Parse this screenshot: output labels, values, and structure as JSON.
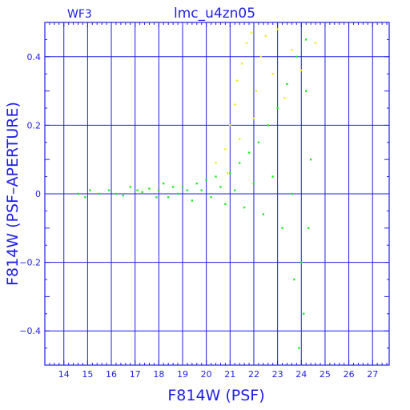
{
  "header": {
    "chip": "WF3",
    "title": "lmc_u4zn05"
  },
  "colors": {
    "axes": "#1e1ee6",
    "grid": "#1e1ee6",
    "main_points": "#22ee22",
    "secondary_points": "#eeee22",
    "background": "#ffffff"
  },
  "chart_data": {
    "type": "scatter",
    "title": "lmc_u4zn05",
    "xlabel": "F814W (PSF)",
    "ylabel": "F814W (PSF–APERTURE)",
    "xlim": [
      13.2,
      27.7
    ],
    "ylim": [
      -0.5,
      0.5
    ],
    "x_ticks": [
      "14",
      "15",
      "16",
      "17",
      "18",
      "19",
      "20",
      "21",
      "22",
      "23",
      "24",
      "25",
      "26",
      "27"
    ],
    "y_ticks": [
      "0.4",
      "0.2",
      "0",
      "−0.2",
      "−0.4"
    ],
    "y_tick_values": [
      0.4,
      0.2,
      0,
      -0.2,
      -0.4
    ],
    "grid": true,
    "legend": "none",
    "series": [
      {
        "color": "green",
        "points": [
          [
            14.6,
            0.0
          ],
          [
            14.9,
            -0.01
          ],
          [
            15.1,
            0.01
          ],
          [
            15.5,
            0.0
          ],
          [
            15.9,
            0.01
          ],
          [
            16.2,
            0.0
          ],
          [
            16.5,
            -0.005
          ],
          [
            16.8,
            0.02
          ],
          [
            17.1,
            0.01
          ],
          [
            17.3,
            0.005
          ],
          [
            17.6,
            0.015
          ],
          [
            17.9,
            -0.01
          ],
          [
            18.0,
            0.01
          ],
          [
            18.2,
            0.03
          ],
          [
            18.4,
            -0.01
          ],
          [
            18.6,
            0.02
          ],
          [
            18.8,
            0.0
          ],
          [
            19.0,
            0.02
          ],
          [
            19.2,
            0.01
          ],
          [
            19.4,
            -0.02
          ],
          [
            19.6,
            0.03
          ],
          [
            19.8,
            0.01
          ],
          [
            20.0,
            0.04
          ],
          [
            20.2,
            -0.01
          ],
          [
            20.4,
            0.05
          ],
          [
            20.6,
            0.02
          ],
          [
            20.8,
            -0.03
          ],
          [
            21.0,
            0.06
          ],
          [
            21.2,
            0.01
          ],
          [
            21.4,
            0.09
          ],
          [
            21.6,
            -0.04
          ],
          [
            21.8,
            0.12
          ],
          [
            22.0,
            0.03
          ],
          [
            22.2,
            0.15
          ],
          [
            22.4,
            -0.06
          ],
          [
            22.6,
            0.2
          ],
          [
            22.8,
            0.05
          ],
          [
            23.0,
            0.25
          ],
          [
            23.2,
            -0.1
          ],
          [
            23.4,
            0.32
          ],
          [
            23.6,
            0.0
          ],
          [
            23.8,
            0.4
          ],
          [
            24.0,
            -0.2
          ],
          [
            24.1,
            -0.35
          ],
          [
            24.2,
            0.3
          ],
          [
            24.3,
            -0.1
          ],
          [
            23.9,
            -0.45
          ],
          [
            24.4,
            0.1
          ],
          [
            24.2,
            0.45
          ],
          [
            23.7,
            -0.25
          ]
        ]
      },
      {
        "color": "yellow",
        "points": [
          [
            20.4,
            0.09
          ],
          [
            20.8,
            0.13
          ],
          [
            21.0,
            0.2
          ],
          [
            21.2,
            0.26
          ],
          [
            21.3,
            0.33
          ],
          [
            21.5,
            0.38
          ],
          [
            21.7,
            0.44
          ],
          [
            21.9,
            0.47
          ],
          [
            22.1,
            0.3
          ],
          [
            22.3,
            0.4
          ],
          [
            22.5,
            0.46
          ],
          [
            22.8,
            0.35
          ],
          [
            23.0,
            0.48
          ],
          [
            23.3,
            0.28
          ],
          [
            23.6,
            0.42
          ],
          [
            24.0,
            0.36
          ],
          [
            24.6,
            0.44
          ],
          [
            21.4,
            0.16
          ],
          [
            22.0,
            0.22
          ],
          [
            20.9,
            0.06
          ]
        ]
      }
    ]
  }
}
